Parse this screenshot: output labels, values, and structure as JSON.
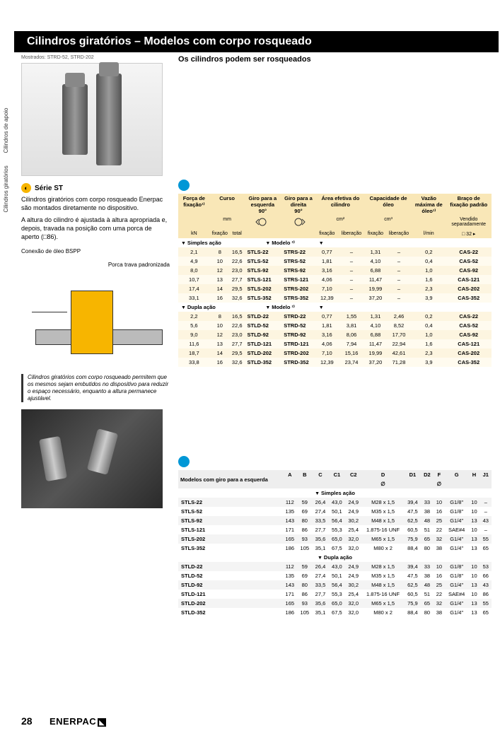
{
  "title": "Cilindros giratórios – Modelos com corpo rosqueado",
  "caption": "Mostrados: STRD-52, STRD-202",
  "sideTabs": [
    "Cilindros giratórios",
    "Cilindros de apoio"
  ],
  "series": {
    "iconGlyph": "◐",
    "title": "Série ST"
  },
  "para1": "Cilindros giratórios com corpo rosqueado Enerpac são montados diretamente no dispositivo.",
  "para2": "A altura do cilindro é ajustada à altura apropriada e, depois, travada na posição com uma porca de aperto (□86).",
  "labelConn": "Conexão de óleo BSPP",
  "labelNut": "Porca trava padronizada",
  "note": "Cilindros giratórios com corpo rosqueado permitem que os mesmos sejam embutidos no dispositivo para reduzir o espaço necessário, enquanto a altura permanece ajustável.",
  "subHdr": "Os cilindros podem ser rosqueados",
  "pageNum": "28",
  "brand": "ENERPAC",
  "t1": {
    "hdr": {
      "forca": "Força de fixação¹⁾",
      "curso": "Curso",
      "giroL": "Giro para a esquerda",
      "giroR": "Giro para a direita",
      "area": "Área efetiva do cilindro",
      "cap": "Capacidade de óleo",
      "vazao": "Vazão máxima de óleo¹⁾",
      "braco": "Braço de fixação padrão",
      "deg": "90°",
      "mm": "mm",
      "cm2": "cm²",
      "cm3": "cm³",
      "vend": "Vendido separadamente",
      "kn": "kN",
      "fix": "fixação",
      "tot": "total",
      "lib": "liberação",
      "lmin": "l/min",
      "pg": "□ 32 ▸"
    },
    "secSimples": "Simples ação",
    "secDupla": "Dupla ação",
    "modelo": "Modelo ²⁾",
    "simples": [
      {
        "f": "2,1",
        "s1": "8",
        "s2": "16,5",
        "ml": "STLS-22",
        "mr": "STRS-22",
        "a1": "0,77",
        "a2": "–",
        "c1": "1,31",
        "c2": "–",
        "v": "0,2",
        "cas": "CAS-22"
      },
      {
        "f": "4,9",
        "s1": "10",
        "s2": "22,6",
        "ml": "STLS-52",
        "mr": "STRS-52",
        "a1": "1,81",
        "a2": "–",
        "c1": "4,10",
        "c2": "–",
        "v": "0,4",
        "cas": "CAS-52"
      },
      {
        "f": "8,0",
        "s1": "12",
        "s2": "23,0",
        "ml": "STLS-92",
        "mr": "STRS-92",
        "a1": "3,16",
        "a2": "–",
        "c1": "6,88",
        "c2": "–",
        "v": "1,0",
        "cas": "CAS-92"
      },
      {
        "f": "10,7",
        "s1": "13",
        "s2": "27,7",
        "ml": "STLS-121",
        "mr": "STRS-121",
        "a1": "4,06",
        "a2": "–",
        "c1": "11,47",
        "c2": "–",
        "v": "1,6",
        "cas": "CAS-121"
      },
      {
        "f": "17,4",
        "s1": "14",
        "s2": "29,5",
        "ml": "STLS-202",
        "mr": "STRS-202",
        "a1": "7,10",
        "a2": "–",
        "c1": "19,99",
        "c2": "–",
        "v": "2,3",
        "cas": "CAS-202"
      },
      {
        "f": "33,1",
        "s1": "16",
        "s2": "32,6",
        "ml": "STLS-352",
        "mr": "STRS-352",
        "a1": "12,39",
        "a2": "–",
        "c1": "37,20",
        "c2": "–",
        "v": "3,9",
        "cas": "CAS-352"
      }
    ],
    "dupla": [
      {
        "f": "2,2",
        "s1": "8",
        "s2": "16,5",
        "ml": "STLD-22",
        "mr": "STRD-22",
        "a1": "0,77",
        "a2": "1,55",
        "c1": "1,31",
        "c2": "2,46",
        "v": "0,2",
        "cas": "CAS-22"
      },
      {
        "f": "5,6",
        "s1": "10",
        "s2": "22,6",
        "ml": "STLD-52",
        "mr": "STRD-52",
        "a1": "1,81",
        "a2": "3,81",
        "c1": "4,10",
        "c2": "8,52",
        "v": "0,4",
        "cas": "CAS-52"
      },
      {
        "f": "9,0",
        "s1": "12",
        "s2": "23,0",
        "ml": "STLD-92",
        "mr": "STRD-92",
        "a1": "3,16",
        "a2": "8,06",
        "c1": "6,88",
        "c2": "17,70",
        "v": "1,0",
        "cas": "CAS-92"
      },
      {
        "f": "11,6",
        "s1": "13",
        "s2": "27,7",
        "ml": "STLD-121",
        "mr": "STRD-121",
        "a1": "4,06",
        "a2": "7,94",
        "c1": "11,47",
        "c2": "22,94",
        "v": "1,6",
        "cas": "CAS-121"
      },
      {
        "f": "18,7",
        "s1": "14",
        "s2": "29,5",
        "ml": "STLD-202",
        "mr": "STRD-202",
        "a1": "7,10",
        "a2": "15,16",
        "c1": "19,99",
        "c2": "42,61",
        "v": "2,3",
        "cas": "CAS-202"
      },
      {
        "f": "33,8",
        "s1": "16",
        "s2": "32,6",
        "ml": "STLD-352",
        "mr": "STRD-352",
        "a1": "12,39",
        "a2": "23,74",
        "c1": "37,20",
        "c2": "71,28",
        "v": "3,9",
        "cas": "CAS-352"
      }
    ]
  },
  "t2": {
    "lh": "Modelos com giro para a esquerda",
    "cols": [
      "A",
      "B",
      "C",
      "C1",
      "C2",
      "D",
      "D1",
      "D2",
      "F",
      "G",
      "H",
      "J1"
    ],
    "diam": "∅",
    "secSimples": "Simples ação",
    "secDupla": "Dupla ação",
    "simples": [
      {
        "m": "STLS-22",
        "v": [
          "112",
          "59",
          "26,4",
          "43,0",
          "24,9",
          "M28 x 1,5",
          "39,4",
          "33",
          "10",
          "G1/8\"",
          "10",
          "–"
        ]
      },
      {
        "m": "STLS-52",
        "v": [
          "135",
          "69",
          "27,4",
          "50,1",
          "24,9",
          "M35 x 1,5",
          "47,5",
          "38",
          "16",
          "G1/8\"",
          "10",
          "–"
        ]
      },
      {
        "m": "STLS-92",
        "v": [
          "143",
          "80",
          "33,5",
          "56,4",
          "30,2",
          "M48 x 1,5",
          "62,5",
          "48",
          "25",
          "G1/4\"",
          "13",
          "43"
        ]
      },
      {
        "m": "STLS-121",
        "v": [
          "171",
          "86",
          "27,7",
          "55,3",
          "25,4",
          "1.875-16 UNF",
          "60,5",
          "51",
          "22",
          "SAE#4",
          "10",
          "–"
        ]
      },
      {
        "m": "STLS-202",
        "v": [
          "165",
          "93",
          "35,6",
          "65,0",
          "32,0",
          "M65 x 1,5",
          "75,9",
          "65",
          "32",
          "G1/4\"",
          "13",
          "55"
        ]
      },
      {
        "m": "STLS-352",
        "v": [
          "186",
          "105",
          "35,1",
          "67,5",
          "32,0",
          "M80 x 2",
          "88,4",
          "80",
          "38",
          "G1/4\"",
          "13",
          "65"
        ]
      }
    ],
    "dupla": [
      {
        "m": "STLD-22",
        "v": [
          "112",
          "59",
          "26,4",
          "43,0",
          "24,9",
          "M28 x 1,5",
          "39,4",
          "33",
          "10",
          "G1/8\"",
          "10",
          "53"
        ]
      },
      {
        "m": "STLD-52",
        "v": [
          "135",
          "69",
          "27,4",
          "50,1",
          "24,9",
          "M35 x 1,5",
          "47,5",
          "38",
          "16",
          "G1/8\"",
          "10",
          "66"
        ]
      },
      {
        "m": "STLD-92",
        "v": [
          "143",
          "80",
          "33,5",
          "56,4",
          "30,2",
          "M48 x 1,5",
          "62,5",
          "48",
          "25",
          "G1/4\"",
          "13",
          "43"
        ]
      },
      {
        "m": "STLD-121",
        "v": [
          "171",
          "86",
          "27,7",
          "55,3",
          "25,4",
          "1.875-16 UNF",
          "60,5",
          "51",
          "22",
          "SAE#4",
          "10",
          "86"
        ]
      },
      {
        "m": "STLD-202",
        "v": [
          "165",
          "93",
          "35,6",
          "65,0",
          "32,0",
          "M65 x 1,5",
          "75,9",
          "65",
          "32",
          "G1/4\"",
          "13",
          "55"
        ]
      },
      {
        "m": "STLD-352",
        "v": [
          "186",
          "105",
          "35,1",
          "67,5",
          "32,0",
          "M80 x 2",
          "88,4",
          "80",
          "38",
          "G1/4\"",
          "13",
          "65"
        ]
      }
    ]
  },
  "colors": {
    "headerYellow": "#f9e7b7",
    "rowA": "#fdf5e0",
    "rowB": "#fffbef",
    "accent": "#f7b500",
    "blue": "#0097d6"
  }
}
